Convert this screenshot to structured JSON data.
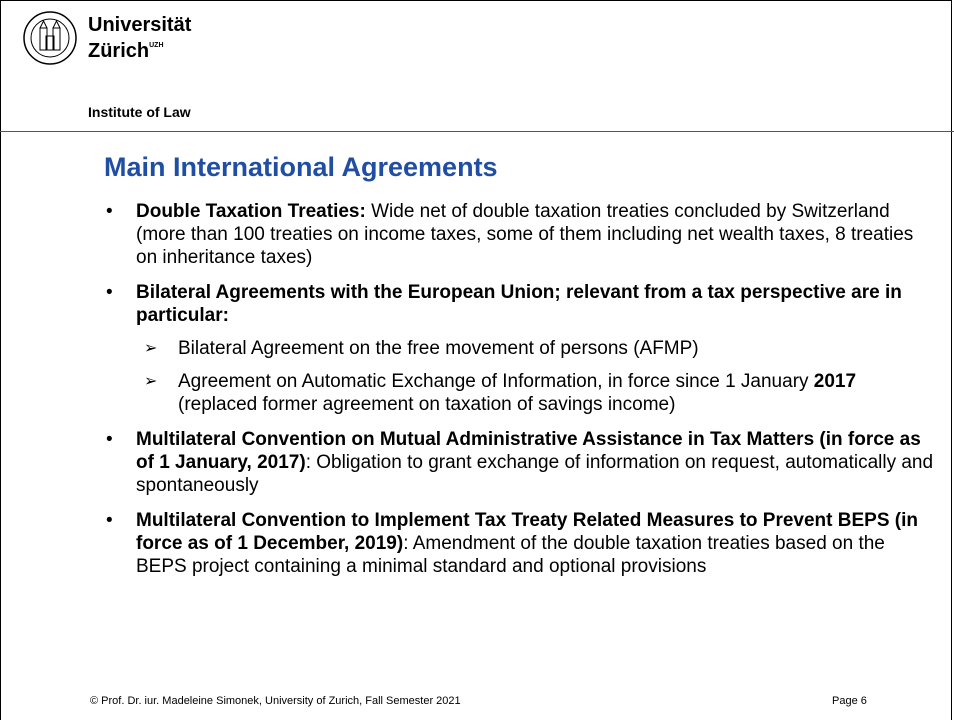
{
  "header": {
    "university_line1": "Universität",
    "university_line2": "Zürich",
    "university_mark": "UZH",
    "institute": "Institute of Law"
  },
  "title": "Main International Agreements",
  "bullets": [
    {
      "segments": [
        {
          "text": "Double Taxation Treaties:",
          "bold": true
        },
        {
          "text": " Wide net of double taxation treaties concluded by Switzerland (more than 100 treaties on income taxes, some of them including net wealth taxes, 8 treaties on inheritance taxes)",
          "bold": false
        }
      ],
      "subitems": []
    },
    {
      "segments": [
        {
          "text": "Bilateral Agreements with the European Union; relevant from a tax perspective are in particular:",
          "bold": true
        }
      ],
      "subitems": [
        {
          "segments": [
            {
              "text": "Bilateral Agreement on the free movement of persons (AFMP)",
              "bold": false
            }
          ]
        },
        {
          "segments": [
            {
              "text": "Agreement on Automatic Exchange of Information, in force since 1 January ",
              "bold": false
            },
            {
              "text": "2017",
              "bold": true
            },
            {
              "text": " (replaced former agreement on taxation of savings income)",
              "bold": false
            }
          ]
        }
      ]
    },
    {
      "segments": [
        {
          "text": "Multilateral Convention on Mutual Administrative Assistance in Tax Matters (in force as of 1 January, 2017)",
          "bold": true
        },
        {
          "text": ": Obligation to grant exchange of information on request, automatically and spontaneously",
          "bold": false
        }
      ],
      "subitems": []
    },
    {
      "segments": [
        {
          "text": "Multilateral Convention to Implement Tax Treaty Related Measures to Prevent BEPS (in force as of 1 December, 2019)",
          "bold": true
        },
        {
          "text": ": Amendment of the double taxation treaties based on the BEPS project containing a minimal standard and optional provisions",
          "bold": false
        }
      ],
      "subitems": []
    }
  ],
  "footer": {
    "credit": "© Prof. Dr. iur. Madeleine Simonek, University of Zurich, Fall Semester 2021",
    "page": "Page 6"
  }
}
